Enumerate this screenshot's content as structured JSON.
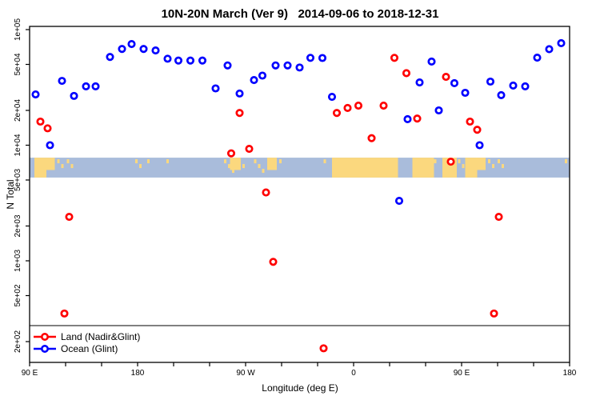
{
  "title": "10N-20N March (Ver 9)   2014-09-06 to 2018-12-31",
  "legend": {
    "items": [
      {
        "label": "Land (Nadir&Glint)",
        "color": "#ff0000"
      },
      {
        "label": "Ocean (Glint)",
        "color": "#0000ff"
      }
    ]
  },
  "colors": {
    "land_series": "#ff0000",
    "ocean_series": "#0000ff",
    "map_ocean": "#a9bcdb",
    "map_land": "#fbd87e",
    "axis": "#000000",
    "background": "#ffffff"
  },
  "chart_data": {
    "type": "scatter",
    "title": "10N-20N March (Ver 9)   2014-09-06 to 2018-12-31",
    "xlabel": "Longitude (deg E)",
    "ylabel": "N Total",
    "x_axis": {
      "range_deg": [
        90,
        540
      ],
      "minor_tick_step_deg": 30,
      "ticks": [
        {
          "deg": 90,
          "label": "90 E"
        },
        {
          "deg": 180,
          "label": "180"
        },
        {
          "deg": 270,
          "label": "90 W"
        },
        {
          "deg": 360,
          "label": "0"
        },
        {
          "deg": 450,
          "label": "90 E"
        },
        {
          "deg": 540,
          "label": "180"
        }
      ]
    },
    "y_axis": {
      "scale": "log",
      "range": [
        130,
        110000
      ],
      "ticks": [
        {
          "label": "2e+02",
          "value": 200
        },
        {
          "label": "5e+02",
          "value": 500
        },
        {
          "label": "1e+03",
          "value": 1000
        },
        {
          "label": "2e+03",
          "value": 2000
        },
        {
          "label": "5e+03",
          "value": 5000
        },
        {
          "label": "1e+04",
          "value": 10000
        },
        {
          "label": "2e+04",
          "value": 20000
        },
        {
          "label": "5e+04",
          "value": 50000
        },
        {
          "label": "1e+05",
          "value": 100000
        }
      ]
    },
    "horizontal_line_value": 275,
    "map_band": {
      "top_value": 7800,
      "bottom_value": 5250,
      "land_segments": [
        [
          94,
          104,
          "full"
        ],
        [
          104,
          111,
          "top"
        ],
        [
          113,
          119,
          "spots"
        ],
        [
          121,
          126,
          "spots"
        ],
        [
          178,
          184,
          "spots"
        ],
        [
          188,
          191,
          "spots"
        ],
        [
          204,
          206,
          "spots"
        ],
        [
          252,
          263,
          "spots"
        ],
        [
          257,
          266,
          "top"
        ],
        [
          264,
          272,
          "spots"
        ],
        [
          277,
          287,
          "spots"
        ],
        [
          288,
          296,
          "top"
        ],
        [
          298,
          301,
          "spots"
        ],
        [
          335,
          337,
          "spots"
        ],
        [
          342,
          397,
          "full"
        ],
        [
          409,
          427,
          "full"
        ],
        [
          427,
          431,
          "spots"
        ],
        [
          434,
          446,
          "full"
        ],
        [
          447,
          452,
          "spots"
        ],
        [
          453,
          463,
          "full"
        ],
        [
          462,
          470,
          "top"
        ],
        [
          472,
          478,
          "spots"
        ],
        [
          480,
          486,
          "spots"
        ],
        [
          536,
          540,
          "spots"
        ]
      ]
    },
    "series": [
      {
        "name": "Land (Nadir&Glint)",
        "color": "#ff0000",
        "points": [
          [
            99,
            16000
          ],
          [
            105,
            14000
          ],
          [
            119,
            350
          ],
          [
            123,
            2400
          ],
          [
            258,
            8500
          ],
          [
            265,
            19000
          ],
          [
            273,
            9300
          ],
          [
            287,
            3900
          ],
          [
            293,
            980
          ],
          [
            335,
            175
          ],
          [
            346,
            19000
          ],
          [
            355,
            21000
          ],
          [
            364,
            22000
          ],
          [
            375,
            11500
          ],
          [
            385,
            22000
          ],
          [
            394,
            57000
          ],
          [
            404,
            42000
          ],
          [
            413,
            17000
          ],
          [
            437,
            39000
          ],
          [
            441,
            7200
          ],
          [
            457,
            16000
          ],
          [
            463,
            13600
          ],
          [
            477,
            350
          ],
          [
            481,
            2400
          ]
        ]
      },
      {
        "name": "Ocean (Glint)",
        "color": "#0000ff",
        "points": [
          [
            95,
            27500
          ],
          [
            107,
            10000
          ],
          [
            117,
            36000
          ],
          [
            127,
            26700
          ],
          [
            137,
            32300
          ],
          [
            145,
            32300
          ],
          [
            157,
            58000
          ],
          [
            167,
            68000
          ],
          [
            175,
            75000
          ],
          [
            185,
            68000
          ],
          [
            195,
            66000
          ],
          [
            205,
            56000
          ],
          [
            214,
            54000
          ],
          [
            224,
            54000
          ],
          [
            234,
            54000
          ],
          [
            245,
            31000
          ],
          [
            255,
            49000
          ],
          [
            265,
            28000
          ],
          [
            277,
            36600
          ],
          [
            284,
            40000
          ],
          [
            295,
            49000
          ],
          [
            305,
            49000
          ],
          [
            315,
            47000
          ],
          [
            324,
            57000
          ],
          [
            334,
            56800
          ],
          [
            342,
            26200
          ],
          [
            398,
            3300
          ],
          [
            405,
            16800
          ],
          [
            415,
            34900
          ],
          [
            425,
            52900
          ],
          [
            431,
            20000
          ],
          [
            444,
            34400
          ],
          [
            453,
            28400
          ],
          [
            465,
            10000
          ],
          [
            474,
            35500
          ],
          [
            483,
            27100
          ],
          [
            493,
            32800
          ],
          [
            503,
            32300
          ],
          [
            513,
            57200
          ],
          [
            523,
            67700
          ],
          [
            533,
            76300
          ]
        ]
      }
    ]
  }
}
